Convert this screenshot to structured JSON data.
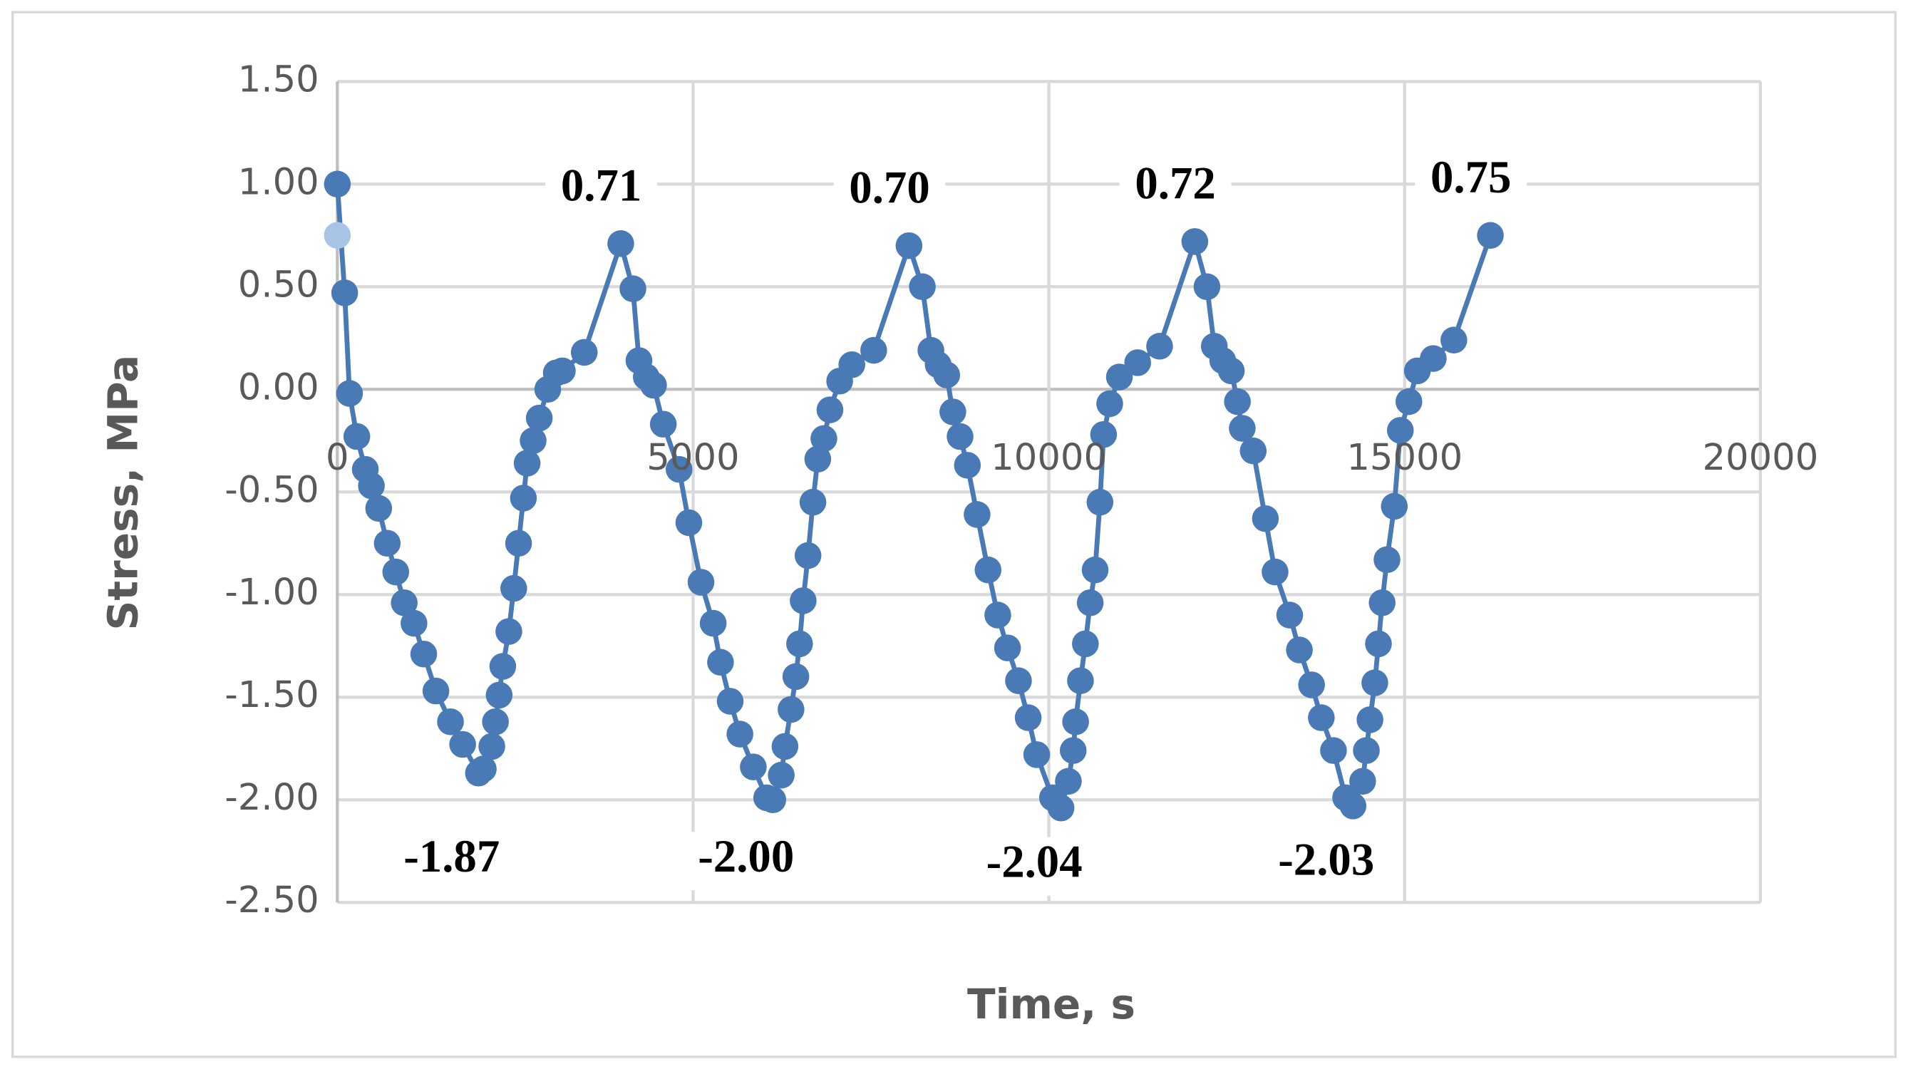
{
  "chart_data": {
    "type": "scatter-line",
    "xlabel": "Time, s",
    "ylabel": "Stress, MPa",
    "xlim": [
      0,
      20000
    ],
    "xticks": [
      0,
      5000,
      10000,
      15000,
      20000
    ],
    "ylim": [
      -2.5,
      1.5
    ],
    "yticks": [
      {
        "value": 1.5,
        "label": "1.50"
      },
      {
        "value": 1.0,
        "label": "1.00"
      },
      {
        "value": 0.5,
        "label": "0.50"
      },
      {
        "value": 0,
        "label": "0.00"
      },
      {
        "value": -0.5,
        "label": "-0.50"
      },
      {
        "value": -1.0,
        "label": "-1.00"
      },
      {
        "value": -1.5,
        "label": "-1.50"
      },
      {
        "value": -2.0,
        "label": "-2.00"
      },
      {
        "value": -2.5,
        "label": "-2.50"
      }
    ],
    "grid": true,
    "series": [
      {
        "color": "#4a7ab5",
        "x": [
          0,
          103,
          171,
          274,
          393,
          479,
          581,
          701,
          821,
          940,
          1077,
          1214,
          1385,
          1590,
          1761,
          1983,
          2051,
          2171,
          2222,
          2274,
          2325,
          2410,
          2479,
          2547,
          2615,
          2667,
          2752,
          2838,
          2957,
          3077,
          3162,
          3470,
          3983,
          4154,
          4239,
          4342,
          4444,
          4581,
          4803,
          4940,
          5111,
          5282,
          5385,
          5521,
          5658,
          5846,
          6034,
          6120,
          6239,
          6291,
          6376,
          6444,
          6496,
          6547,
          6615,
          6684,
          6752,
          6838,
          6923,
          7060,
          7231,
          7538,
          8034,
          8222,
          8342,
          8444,
          8564,
          8650,
          8752,
          8855,
          8991,
          9145,
          9282,
          9419,
          9573,
          9709,
          9829,
          10051,
          10171,
          10274,
          10342,
          10376,
          10444,
          10513,
          10581,
          10650,
          10718,
          10769,
          10855,
          10991,
          11248,
          11556,
          12051,
          12222,
          12325,
          12444,
          12564,
          12650,
          12718,
          12872,
          13043,
          13179,
          13385,
          13521,
          13692,
          13829,
          14000,
          14171,
          14274,
          14410,
          14462,
          14513,
          14581,
          14632,
          14684,
          14752,
          14855,
          14940,
          15060,
          15179,
          15402,
          15692,
          16205
        ],
        "values": [
          1.0,
          0.47,
          -0.02,
          -0.23,
          -0.39,
          -0.47,
          -0.58,
          -0.75,
          -0.89,
          -1.04,
          -1.14,
          -1.29,
          -1.47,
          -1.62,
          -1.73,
          -1.87,
          -1.85,
          -1.74,
          -1.62,
          -1.49,
          -1.35,
          -1.18,
          -0.97,
          -0.75,
          -0.53,
          -0.36,
          -0.25,
          -0.14,
          0.0,
          0.08,
          0.09,
          0.18,
          0.71,
          0.49,
          0.14,
          0.06,
          0.02,
          -0.17,
          -0.39,
          -0.65,
          -0.94,
          -1.14,
          -1.33,
          -1.52,
          -1.68,
          -1.84,
          -1.99,
          -2.0,
          -1.88,
          -1.74,
          -1.56,
          -1.4,
          -1.24,
          -1.03,
          -0.81,
          -0.55,
          -0.34,
          -0.24,
          -0.1,
          0.04,
          0.12,
          0.19,
          0.7,
          0.5,
          0.19,
          0.12,
          0.07,
          -0.11,
          -0.23,
          -0.37,
          -0.61,
          -0.88,
          -1.1,
          -1.26,
          -1.42,
          -1.6,
          -1.78,
          -1.99,
          -2.04,
          -1.91,
          -1.76,
          -1.62,
          -1.42,
          -1.24,
          -1.04,
          -0.88,
          -0.55,
          -0.22,
          -0.07,
          0.06,
          0.13,
          0.21,
          0.72,
          0.5,
          0.21,
          0.14,
          0.09,
          -0.06,
          -0.19,
          -0.3,
          -0.63,
          -0.89,
          -1.1,
          -1.27,
          -1.44,
          -1.6,
          -1.76,
          -1.99,
          -2.03,
          -1.91,
          -1.76,
          -1.61,
          -1.43,
          -1.24,
          -1.04,
          -0.83,
          -0.57,
          -0.2,
          -0.06,
          0.09,
          0.15,
          0.24,
          0.75
        ],
        "value_labels": [
          null,
          null,
          null,
          null,
          null,
          null,
          null,
          null,
          null,
          null,
          null,
          null,
          null,
          null,
          null,
          "-1.87",
          null,
          null,
          null,
          null,
          null,
          null,
          null,
          null,
          null,
          null,
          null,
          null,
          null,
          null,
          null,
          null,
          "0.71",
          null,
          null,
          null,
          null,
          null,
          null,
          null,
          null,
          null,
          null,
          null,
          null,
          null,
          null,
          "-2.00",
          null,
          null,
          null,
          null,
          null,
          null,
          null,
          null,
          null,
          null,
          null,
          null,
          null,
          null,
          "0.70",
          null,
          null,
          null,
          null,
          null,
          null,
          null,
          null,
          null,
          null,
          null,
          null,
          null,
          null,
          null,
          "-2.04",
          null,
          null,
          null,
          null,
          null,
          null,
          null,
          null,
          null,
          null,
          null,
          null,
          null,
          "0.72",
          null,
          null,
          null,
          null,
          null,
          null,
          null,
          null,
          null,
          null,
          null,
          null,
          null,
          null,
          null,
          "-2.03",
          null,
          null,
          null,
          null,
          null,
          null,
          null,
          null,
          null,
          null,
          null,
          null,
          null,
          "0.75"
        ]
      },
      {
        "color": "#a9c4e6",
        "x": [
          0
        ],
        "values": [
          0.75
        ]
      }
    ]
  }
}
